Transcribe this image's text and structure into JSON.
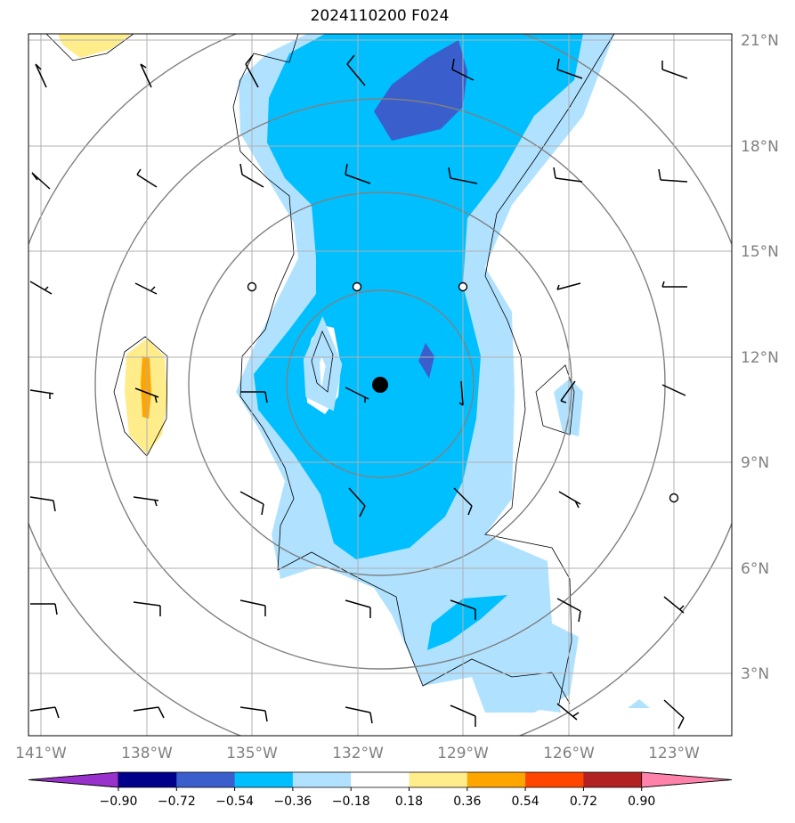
{
  "title": "2024110200 F024",
  "lat_labels": [
    "21°N",
    "18°N",
    "15°N",
    "12°N",
    "9°N",
    "6°N",
    "3°N"
  ],
  "lon_labels": [
    "141°W",
    "138°W",
    "135°W",
    "132°W",
    "129°W",
    "126°W",
    "123°W"
  ],
  "colorbar": {
    "ticks": [
      "−0.90",
      "−0.72",
      "−0.54",
      "−0.36",
      "−0.18",
      "0.18",
      "0.36",
      "0.54",
      "0.72",
      "0.90"
    ],
    "colors": [
      "#9932cc",
      "#00008b",
      "#3a5fcd",
      "#00bfff",
      "#b0e2ff",
      "#ffffff",
      "#ffec8b",
      "#ffa500",
      "#ff4500",
      "#b22222",
      "#ff82ab"
    ]
  },
  "colors": {
    "dark_blue": "#3a5fcd",
    "deep_sky": "#00bfff",
    "light_blue": "#b0e2ff",
    "yellow": "#ffec8b",
    "orange": "#ffa500",
    "grid": "#b0b0b0",
    "range_rings": "#808080"
  },
  "storm_center": {
    "lon": -131.3,
    "lat": 11.2
  }
}
